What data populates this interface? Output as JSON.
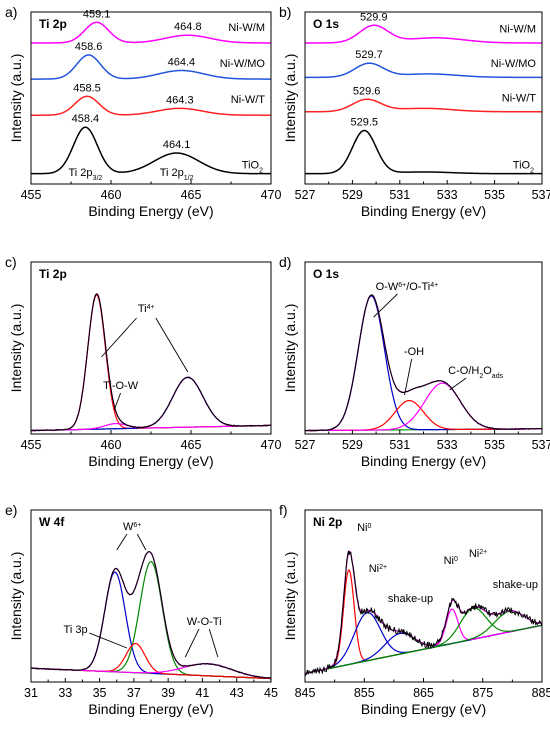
{
  "panels": [
    {
      "id": "a",
      "tag": "a)",
      "title": "Ti 2p",
      "xlabel": "Binding Energy (eV)",
      "ylabel": "Intensity (a.u.)",
      "xlim": [
        455,
        470
      ],
      "xticks": [
        455,
        460,
        465,
        470
      ],
      "type": "stacked-spectra",
      "spectra": [
        {
          "name": "Ni-W/M",
          "color": "#ff00ff",
          "offset": 0.82,
          "peaks": [
            [
              459.1,
              0.12,
              0.75
            ],
            [
              464.8,
              0.045,
              1.4
            ]
          ],
          "labels": [
            "459.1",
            "464.8"
          ]
        },
        {
          "name": "Ni-W/MO",
          "color": "#2255dd",
          "offset": 0.61,
          "peaks": [
            [
              458.6,
              0.14,
              0.75
            ],
            [
              464.4,
              0.05,
              1.4
            ]
          ],
          "labels": [
            "458.6",
            "464.4"
          ]
        },
        {
          "name": "Ni-W/T",
          "color": "#ff2222",
          "offset": 0.4,
          "peaks": [
            [
              458.5,
              0.11,
              0.75
            ],
            [
              464.3,
              0.04,
              1.4
            ]
          ],
          "labels": [
            "458.5",
            "464.3"
          ]
        },
        {
          "name": "TiO2",
          "color": "#000000",
          "offset": 0.06,
          "peaks": [
            [
              458.4,
              0.27,
              0.75
            ],
            [
              464.1,
              0.12,
              1.4
            ]
          ],
          "labels": [
            "458.4",
            "464.1"
          ]
        }
      ],
      "annotations": [
        "Ti 2p3/2",
        "Ti 2p1/2"
      ]
    },
    {
      "id": "b",
      "tag": "b)",
      "title": "O 1s",
      "xlabel": "Binding Energy (eV)",
      "ylabel": "Intensity (a.u.)",
      "xlim": [
        527,
        537
      ],
      "xticks": [
        527,
        529,
        531,
        533,
        535,
        537
      ],
      "type": "stacked-spectra",
      "spectra": [
        {
          "name": "Ni-W/M",
          "color": "#ff00ff",
          "offset": 0.82,
          "peaks": [
            [
              529.9,
              0.1,
              0.6
            ],
            [
              532.5,
              0.03,
              1.2
            ]
          ],
          "labels": [
            "529.9"
          ]
        },
        {
          "name": "Ni-W/MO",
          "color": "#2255dd",
          "offset": 0.62,
          "peaks": [
            [
              529.7,
              0.08,
              0.6
            ],
            [
              532.2,
              0.02,
              1.2
            ]
          ],
          "labels": [
            "529.7"
          ]
        },
        {
          "name": "Ni-W/T",
          "color": "#ff2222",
          "offset": 0.42,
          "peaks": [
            [
              529.6,
              0.07,
              0.6
            ],
            [
              532.0,
              0.02,
              1.2
            ]
          ],
          "labels": [
            "529.6"
          ]
        },
        {
          "name": "TiO2",
          "color": "#000000",
          "offset": 0.06,
          "peaks": [
            [
              529.5,
              0.25,
              0.5
            ],
            [
              532.0,
              0.01,
              1.2
            ]
          ],
          "labels": [
            "529.5"
          ]
        }
      ]
    },
    {
      "id": "c",
      "tag": "c)",
      "title": "Ti 2p",
      "xlabel": "Binding Energy (eV)",
      "ylabel": "Intensity (a.u.)",
      "xlim": [
        455,
        470
      ],
      "xticks": [
        455,
        460,
        465,
        470
      ],
      "type": "fit",
      "labels": [
        "Ti4+",
        "Ti-O-W"
      ]
    },
    {
      "id": "d",
      "tag": "d)",
      "title": "O 1s",
      "xlabel": "Binding Energy (eV)",
      "ylabel": "Intensity (a.u.)",
      "xlim": [
        527,
        537
      ],
      "xticks": [
        527,
        529,
        531,
        533,
        535,
        537
      ],
      "type": "fit",
      "labels": [
        "O-W6+/O-Ti4+",
        "-OH",
        "C-O/H2Oads"
      ]
    },
    {
      "id": "e",
      "tag": "e)",
      "title": "W 4f",
      "xlabel": "Binding Energy (eV)",
      "ylabel": "Intensity (a.u.)",
      "xlim": [
        31,
        45
      ],
      "xticks": [
        31,
        33,
        35,
        37,
        39,
        41,
        43,
        45
      ],
      "type": "fit",
      "labels": [
        "W6+",
        "Ti 3p",
        "W-O-Ti"
      ]
    },
    {
      "id": "f",
      "tag": "f)",
      "title": "Ni 2p",
      "xlabel": "Binding Energy (eV)",
      "ylabel": "Intensity (a.u.)",
      "xlim": [
        845,
        885
      ],
      "xticks": [
        845,
        855,
        865,
        875,
        885
      ],
      "type": "fit",
      "labels": [
        "Ni0",
        "Ni2+",
        "shake-up",
        "Ni0",
        "Ni2+",
        "shake-up"
      ]
    }
  ],
  "chart_data": [
    {
      "type": "line",
      "panel": "a",
      "title": "Ti 2p",
      "xlabel": "Binding Energy (eV)",
      "ylabel": "Intensity (a.u.)",
      "xlim": [
        455,
        470
      ],
      "series": [
        {
          "name": "Ni-W/M",
          "peaks_eV": [
            459.1,
            464.8
          ]
        },
        {
          "name": "Ni-W/MO",
          "peaks_eV": [
            458.6,
            464.4
          ]
        },
        {
          "name": "Ni-W/T",
          "peaks_eV": [
            458.5,
            464.3
          ]
        },
        {
          "name": "TiO2",
          "peaks_eV": [
            458.4,
            464.1
          ]
        }
      ]
    },
    {
      "type": "line",
      "panel": "b",
      "title": "O 1s",
      "xlabel": "Binding Energy (eV)",
      "ylabel": "Intensity (a.u.)",
      "xlim": [
        527,
        537
      ],
      "series": [
        {
          "name": "Ni-W/M",
          "peaks_eV": [
            529.9
          ]
        },
        {
          "name": "Ni-W/MO",
          "peaks_eV": [
            529.7
          ]
        },
        {
          "name": "Ni-W/T",
          "peaks_eV": [
            529.6
          ]
        },
        {
          "name": "TiO2",
          "peaks_eV": [
            529.5
          ]
        }
      ]
    },
    {
      "type": "line",
      "panel": "c",
      "title": "Ti 2p",
      "xlim": [
        455,
        470
      ],
      "components": [
        {
          "name": "Ti4+",
          "center": 459.1,
          "amp": 0.78,
          "width": 0.55,
          "color": "#ff0000"
        },
        {
          "name": "Ti4+",
          "center": 464.8,
          "amp": 0.29,
          "width": 0.95,
          "color": "#0000cc"
        },
        {
          "name": "Ti-O-W",
          "center": 460.3,
          "amp": 0.03,
          "width": 0.7,
          "color": "#ff00ff"
        }
      ],
      "baseline": [
        0.02,
        0.05
      ]
    },
    {
      "type": "line",
      "panel": "d",
      "title": "O 1s",
      "xlim": [
        527,
        537
      ],
      "components": [
        {
          "name": "O-W6+/O-Ti4+",
          "center": 529.8,
          "amp": 0.78,
          "width": 0.55,
          "color": "#0000cc"
        },
        {
          "name": "-OH",
          "center": 531.4,
          "amp": 0.17,
          "width": 0.6,
          "color": "#ff0000"
        },
        {
          "name": "C-O/H2Oads",
          "center": 532.8,
          "amp": 0.27,
          "width": 0.75,
          "color": "#ff00ff"
        }
      ],
      "baseline": [
        0.02,
        0.03
      ]
    },
    {
      "type": "line",
      "panel": "e",
      "title": "W 4f",
      "xlim": [
        31,
        45
      ],
      "components": [
        {
          "name": "W6+",
          "center": 35.9,
          "amp": 0.58,
          "width": 0.6,
          "color": "#0000cc"
        },
        {
          "name": "W6+",
          "center": 38.0,
          "amp": 0.65,
          "width": 0.65,
          "color": "#008800"
        },
        {
          "name": "Ti 3p",
          "center": 37.1,
          "amp": 0.17,
          "width": 0.55,
          "color": "#ff0000"
        },
        {
          "name": "W-O-Ti",
          "center": 41.3,
          "amp": 0.07,
          "width": 1.4,
          "color": "#ff00ff"
        }
      ],
      "baseline": [
        0.08,
        0.02
      ]
    },
    {
      "type": "line",
      "panel": "f",
      "title": "Ni 2p",
      "xlim": [
        845,
        885
      ],
      "components": [
        {
          "name": "Ni0",
          "center": 852.4,
          "amp": 0.55,
          "width": 0.9,
          "color": "#ff0000"
        },
        {
          "name": "Ni2+",
          "center": 855.5,
          "amp": 0.28,
          "width": 2.2,
          "color": "#0000cc"
        },
        {
          "name": "shake-up",
          "center": 861.0,
          "amp": 0.12,
          "width": 2.5,
          "color": "#0000cc"
        },
        {
          "name": "Ni0",
          "center": 869.8,
          "amp": 0.2,
          "width": 1.0,
          "color": "#ff00ff"
        },
        {
          "name": "Ni2+",
          "center": 873.4,
          "amp": 0.18,
          "width": 2.2,
          "color": "#008800"
        },
        {
          "name": "shake-up",
          "center": 879.5,
          "amp": 0.12,
          "width": 2.5,
          "color": "#008800"
        }
      ],
      "baseline": [
        0.05,
        0.33
      ],
      "noisy": true
    }
  ]
}
